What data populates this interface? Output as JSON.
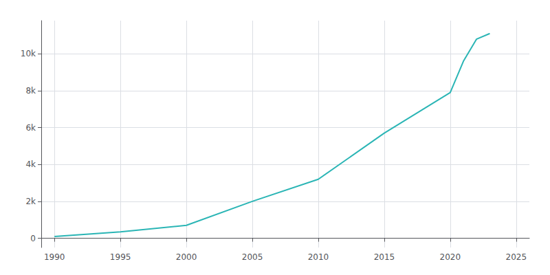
{
  "chart_data": {
    "type": "line",
    "x": [
      1990,
      1995,
      2000,
      2005,
      2010,
      2015,
      2020,
      2021,
      2022,
      2023
    ],
    "values": [
      100,
      350,
      700,
      2000,
      3200,
      5700,
      7900,
      9600,
      10800,
      11100
    ],
    "color": "#2ab5b5",
    "xlim": [
      1989,
      2026
    ],
    "ylim": [
      -500,
      11800
    ],
    "xticks": [
      1990,
      1995,
      2000,
      2005,
      2010,
      2015,
      2020,
      2025
    ],
    "yticks": [
      0,
      {
        "value": 2000,
        "label": "2k"
      },
      {
        "value": 4000,
        "label": "4k"
      },
      {
        "value": 6000,
        "label": "6k"
      },
      {
        "value": 8000,
        "label": "8k"
      },
      {
        "value": 10000,
        "label": "10k"
      }
    ],
    "grid": true
  }
}
